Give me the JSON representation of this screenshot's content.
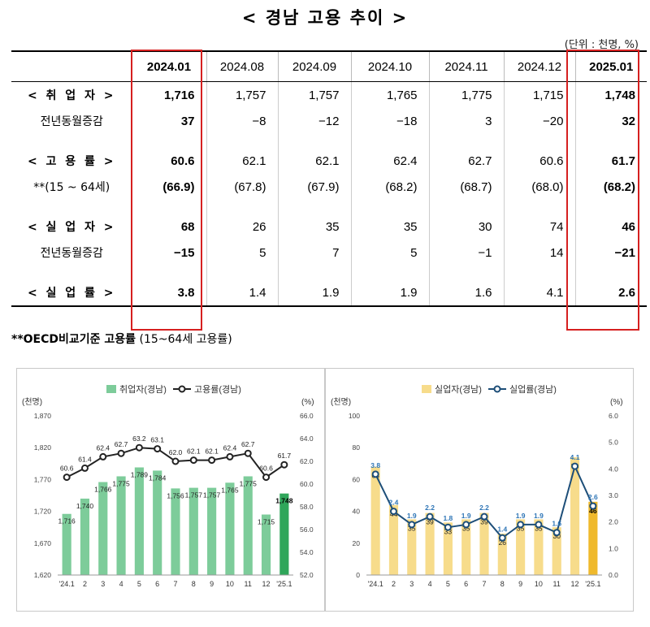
{
  "title": "< 경남 고용 추이 >",
  "unit": "(단위 : 천명, %)",
  "table": {
    "columns": [
      "2024.01",
      "2024.08",
      "2024.09",
      "2024.10",
      "2024.11",
      "2024.12",
      "2025.01"
    ],
    "rows": [
      {
        "label": "< 취 업 자 >",
        "values": [
          "1,716",
          "1,757",
          "1,757",
          "1,765",
          "1,775",
          "1,715",
          "1,748"
        ]
      },
      {
        "label": "전년동월증감",
        "values": [
          "37",
          "−8",
          "−12",
          "−18",
          "3",
          "−20",
          "32"
        ]
      },
      {
        "label": "< 고 용 률 >",
        "values": [
          "60.6",
          "62.1",
          "62.1",
          "62.4",
          "62.7",
          "60.6",
          "61.7"
        ]
      },
      {
        "label": "**(15 ~ 64세)",
        "values": [
          "(66.9)",
          "(67.8)",
          "(67.9)",
          "(68.2)",
          "(68.7)",
          "(68.0)",
          "(68.2)"
        ]
      },
      {
        "label": "< 실 업 자 >",
        "values": [
          "68",
          "26",
          "35",
          "35",
          "30",
          "74",
          "46"
        ]
      },
      {
        "label": "전년동월증감",
        "values": [
          "−15",
          "5",
          "7",
          "5",
          "−1",
          "14",
          "−21"
        ]
      },
      {
        "label": "< 실 업 률 >",
        "values": [
          "3.8",
          "1.4",
          "1.9",
          "1.9",
          "1.6",
          "4.1",
          "2.6"
        ]
      }
    ]
  },
  "note": {
    "bold": "**OECD비교기준 고용률",
    "rest": " (15~64세 고용률)"
  },
  "chart_data": [
    {
      "type": "bar",
      "categories": [
        "'24.1",
        "2",
        "3",
        "4",
        "5",
        "6",
        "7",
        "8",
        "9",
        "10",
        "11",
        "12",
        "'25.1"
      ],
      "series": [
        {
          "name": "취업자(경남)",
          "type": "bar",
          "axis": "left",
          "values": [
            1716,
            1740,
            1766,
            1775,
            1789,
            1784,
            1756,
            1757,
            1757,
            1765,
            1775,
            1715,
            1748
          ]
        },
        {
          "name": "고용률(경남)",
          "type": "line",
          "axis": "right",
          "values": [
            60.6,
            61.4,
            62.4,
            62.7,
            63.2,
            63.1,
            62.0,
            62.1,
            62.1,
            62.4,
            62.7,
            60.6,
            61.7
          ]
        }
      ],
      "ylabel": "(천명)",
      "ylabel_right": "(%)",
      "ylim": [
        1620,
        1870
      ],
      "yticks": [
        "1,620",
        "1,670",
        "1,720",
        "1,770",
        "1,820",
        "1,870"
      ],
      "ylim_right": [
        52.0,
        66.0
      ],
      "yticks_right": [
        "52.0",
        "54.0",
        "56.0",
        "58.0",
        "60.0",
        "62.0",
        "64.0",
        "66.0"
      ],
      "bar_labels": [
        "1,716",
        "1,740",
        "1,766",
        "1,775",
        "1,789",
        "1,784",
        "1,756",
        "1,757",
        "1,757",
        "1,765",
        "1,775",
        "1,715",
        "1,748"
      ],
      "line_labels": [
        "60.6",
        "61.4",
        "62.4",
        "62.7",
        "63.2",
        "63.1",
        "62.0",
        "62.1",
        "62.1",
        "62.4",
        "62.7",
        "60.6",
        "61.7"
      ],
      "legend": "top-center",
      "colors": {
        "bar": "#7dcc9a",
        "bar_last": "#2fa65a",
        "line": "#222222"
      }
    },
    {
      "type": "bar",
      "categories": [
        "'24.1",
        "2",
        "3",
        "4",
        "5",
        "6",
        "7",
        "8",
        "9",
        "10",
        "11",
        "12",
        "'25.1"
      ],
      "series": [
        {
          "name": "실업자(경남)",
          "type": "bar",
          "axis": "left",
          "values": [
            68,
            44,
            35,
            39,
            33,
            35,
            39,
            26,
            35,
            35,
            30,
            74,
            46
          ]
        },
        {
          "name": "실업률(경남)",
          "type": "line",
          "axis": "right",
          "values": [
            3.8,
            2.4,
            1.9,
            2.2,
            1.8,
            1.9,
            2.2,
            1.4,
            1.9,
            1.9,
            1.6,
            4.1,
            2.6
          ]
        }
      ],
      "ylabel": "(천명)",
      "ylabel_right": "(%)",
      "ylim": [
        0,
        100
      ],
      "yticks": [
        "0",
        "20",
        "40",
        "60",
        "80",
        "100"
      ],
      "ylim_right": [
        0.0,
        6.0
      ],
      "yticks_right": [
        "0.0",
        "1.0",
        "2.0",
        "3.0",
        "4.0",
        "5.0",
        "6.0"
      ],
      "bar_labels": [
        "68",
        "44",
        "35",
        "39",
        "33",
        "35",
        "39",
        "26",
        "35",
        "35",
        "30",
        "74",
        "46"
      ],
      "line_labels": [
        "3.8",
        "2.4",
        "1.9",
        "2.2",
        "1.8",
        "1.9",
        "2.2",
        "1.4",
        "1.9",
        "1.9",
        "1.6",
        "4.1",
        "2.6"
      ],
      "legend": "top-center",
      "colors": {
        "bar": "#f7dc8b",
        "bar_last": "#efb92c",
        "line": "#1d4e78",
        "line_label": "#2e75b6"
      }
    }
  ]
}
